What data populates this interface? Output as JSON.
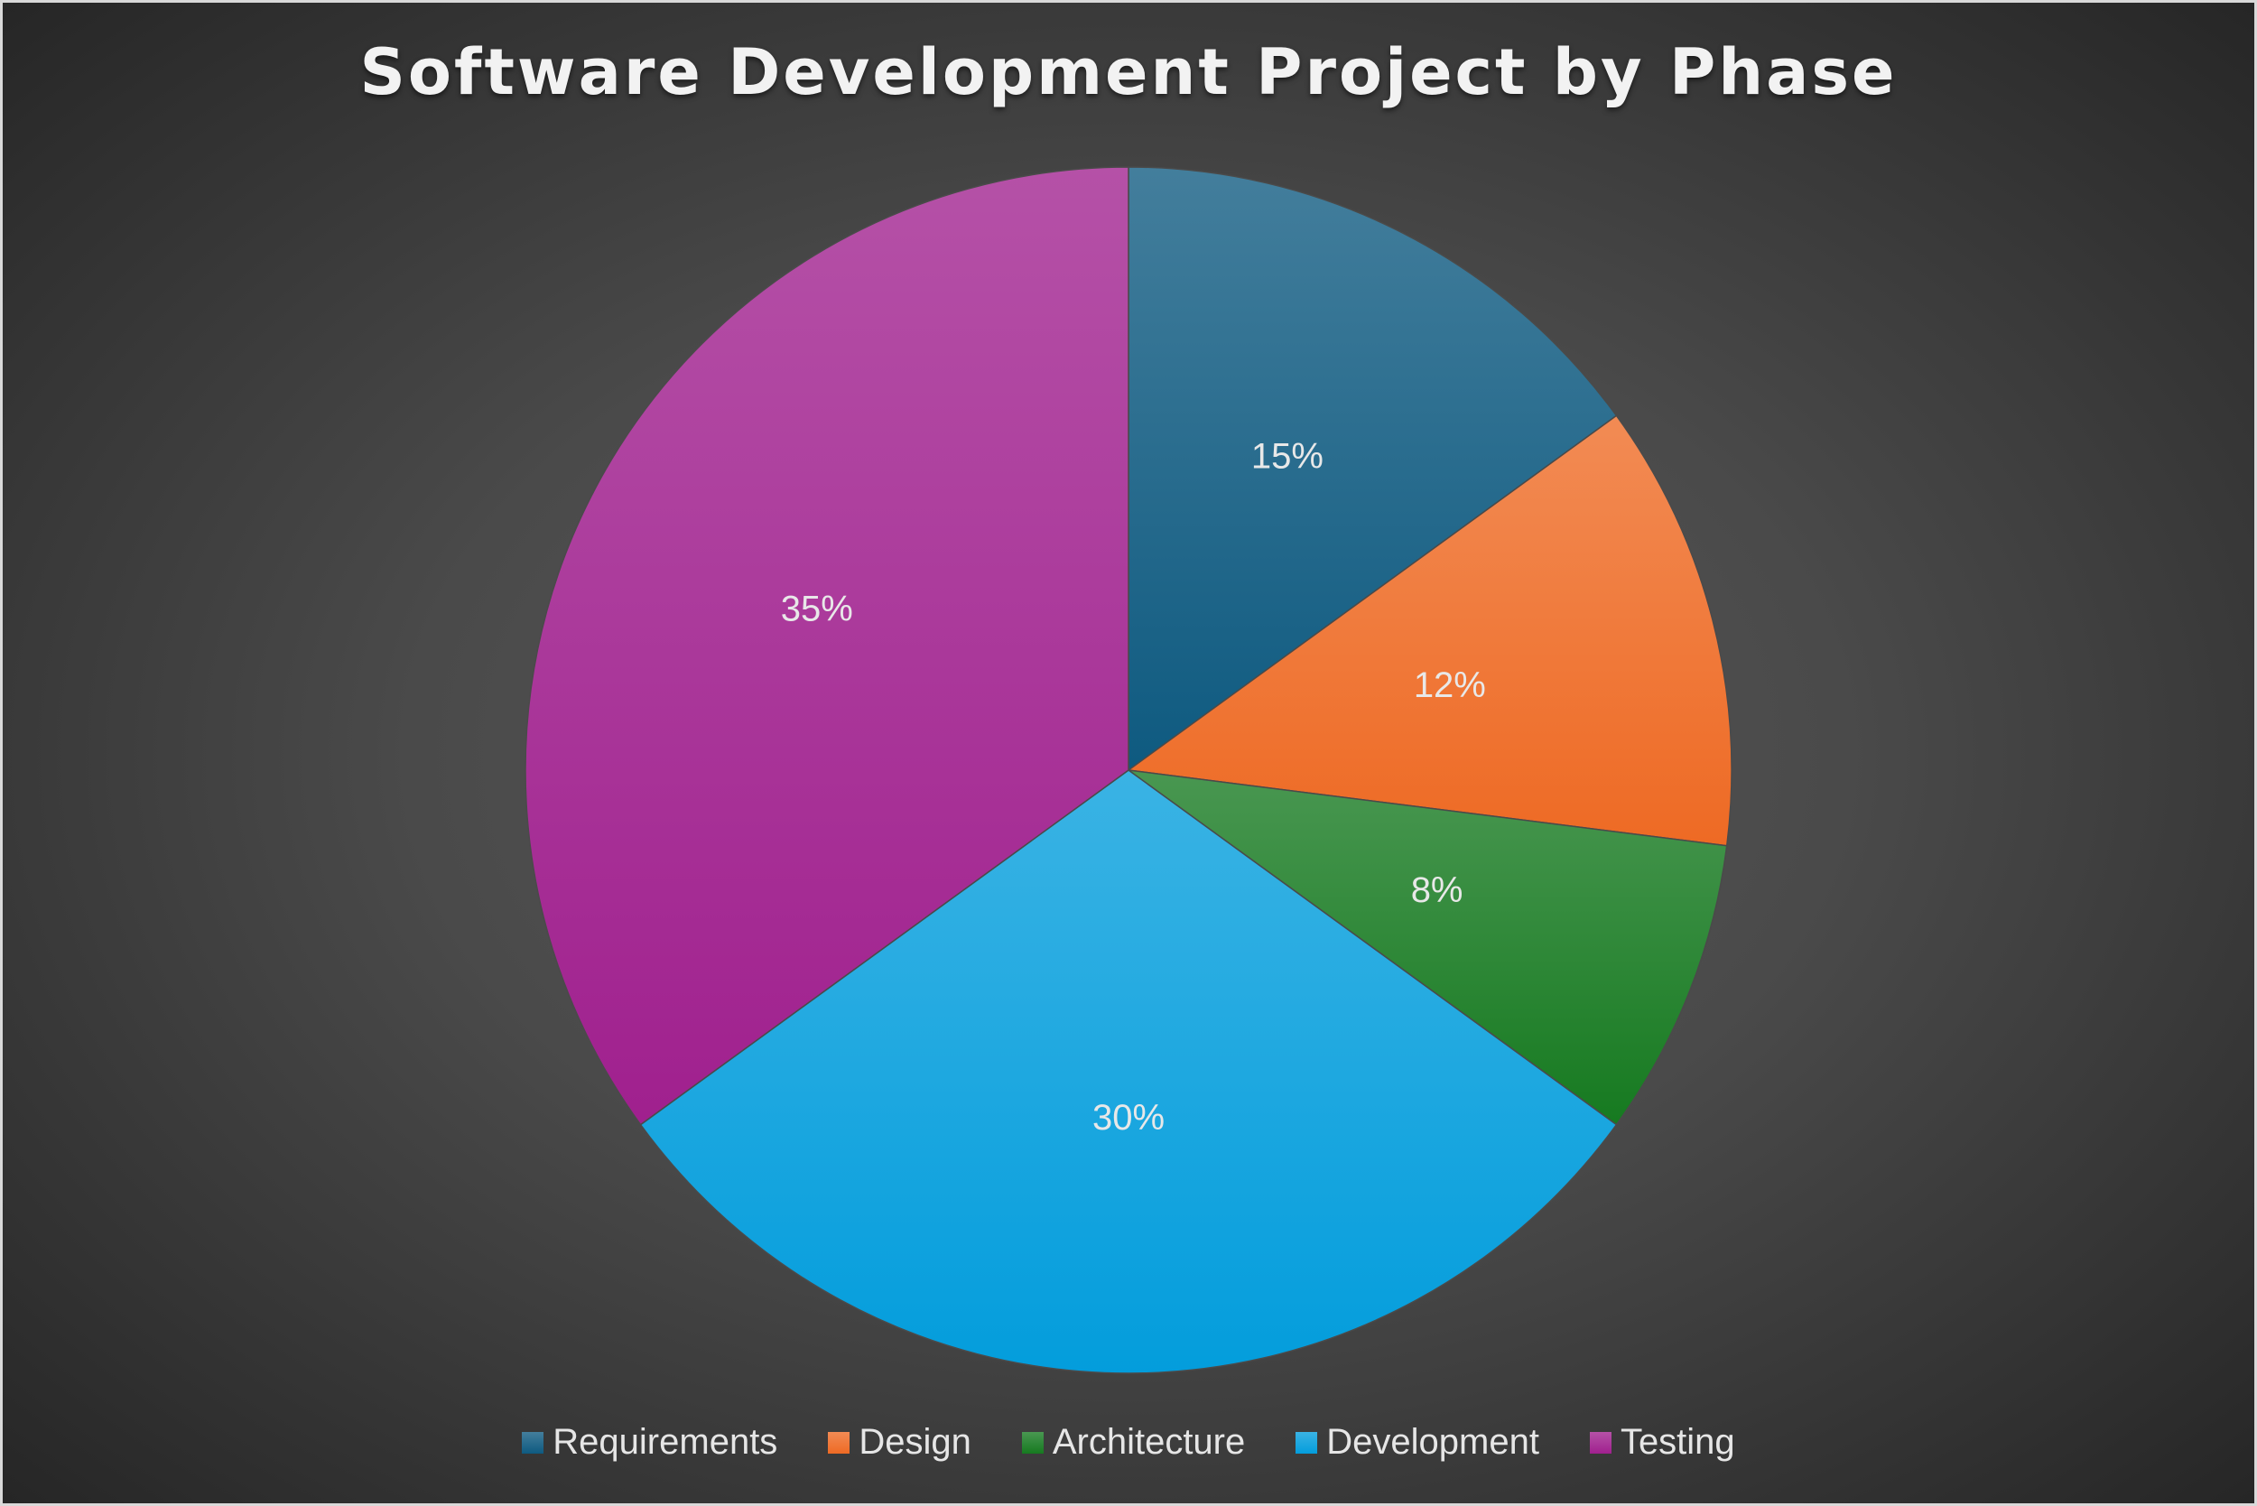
{
  "chart_data": {
    "type": "pie",
    "title": "Software Development Project by Phase",
    "categories": [
      "Requirements",
      "Design",
      "Architecture",
      "Development",
      "Testing"
    ],
    "values": [
      15,
      12,
      8,
      30,
      35
    ],
    "labels": [
      "15%",
      "12%",
      "8%",
      "30%",
      "35%"
    ],
    "colors": [
      "#0e5a80",
      "#ee6a24",
      "#167a20",
      "#039ddc",
      "#a0208e"
    ],
    "legend_position": "bottom",
    "start_angle": "12 o'clock",
    "direction": "clockwise"
  }
}
